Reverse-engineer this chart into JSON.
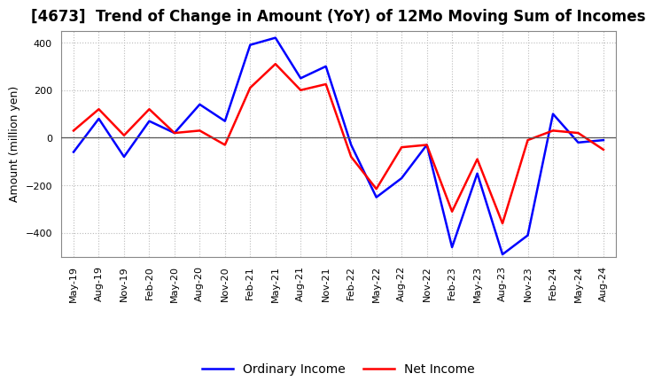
{
  "title": "[4673]  Trend of Change in Amount (YoY) of 12Mo Moving Sum of Incomes",
  "ylabel": "Amount (million yen)",
  "x_labels": [
    "May-19",
    "Aug-19",
    "Nov-19",
    "Feb-20",
    "May-20",
    "Aug-20",
    "Nov-20",
    "Feb-21",
    "May-21",
    "Aug-21",
    "Nov-21",
    "Feb-22",
    "May-22",
    "Aug-22",
    "Nov-22",
    "Feb-23",
    "May-23",
    "Aug-23",
    "Nov-23",
    "Feb-24",
    "May-24",
    "Aug-24"
  ],
  "ordinary_income": [
    -60,
    80,
    -80,
    70,
    20,
    140,
    70,
    390,
    420,
    250,
    300,
    -30,
    -250,
    -170,
    -30,
    -460,
    -150,
    -490,
    -410,
    100,
    -20,
    -10
  ],
  "net_income": [
    30,
    120,
    10,
    120,
    20,
    30,
    -30,
    210,
    310,
    200,
    225,
    -80,
    -215,
    -40,
    -30,
    -310,
    -90,
    -360,
    -10,
    30,
    20,
    -50
  ],
  "ordinary_income_color": "#0000FF",
  "net_income_color": "#FF0000",
  "background_color": "#FFFFFF",
  "grid_color": "#BBBBBB",
  "ylim": [
    -500,
    450
  ],
  "yticks": [
    -400,
    -200,
    0,
    200,
    400
  ],
  "title_fontsize": 12,
  "axis_fontsize": 9,
  "legend_fontsize": 10,
  "tick_fontsize": 8
}
